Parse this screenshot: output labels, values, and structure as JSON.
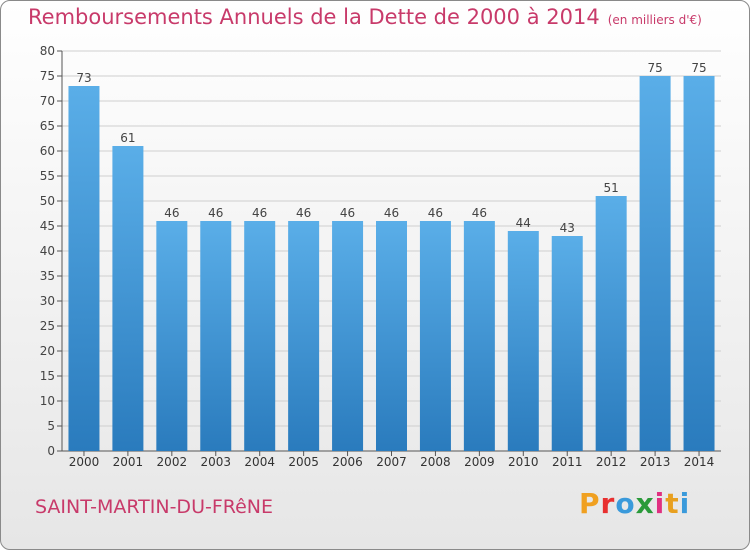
{
  "header": {
    "title": "Remboursements Annuels de la Dette de 2000 à 2014",
    "unit": "(en milliers d'€)"
  },
  "footer": {
    "commune": "SAINT-MARTIN-DU-FRêNE",
    "brand": "Proxiti",
    "brand_colors": [
      "#f0a020",
      "#e83030",
      "#3a9adb",
      "#2a9a3a",
      "#e03080",
      "#e8a020",
      "#3a9adb"
    ]
  },
  "colors": {
    "bar_top": "#5aaee8",
    "bar_bottom": "#2a7bbd",
    "title": "#c83a6a",
    "grid": "#cfcfcf"
  },
  "chart_data": {
    "type": "bar",
    "title": "Remboursements Annuels de la Dette de 2000 à 2014",
    "unit": "(en milliers d'€)",
    "categories": [
      "2000",
      "2001",
      "2002",
      "2003",
      "2004",
      "2005",
      "2006",
      "2007",
      "2008",
      "2009",
      "2010",
      "2011",
      "2012",
      "2013",
      "2014"
    ],
    "values": [
      73,
      61,
      46,
      46,
      46,
      46,
      46,
      46,
      46,
      46,
      44,
      43,
      51,
      75,
      75
    ],
    "ylim": [
      0,
      80
    ],
    "yticks": [
      0,
      5,
      10,
      15,
      20,
      25,
      30,
      35,
      40,
      45,
      50,
      55,
      60,
      65,
      70,
      75,
      80
    ],
    "grid": true,
    "data_labels": true
  }
}
